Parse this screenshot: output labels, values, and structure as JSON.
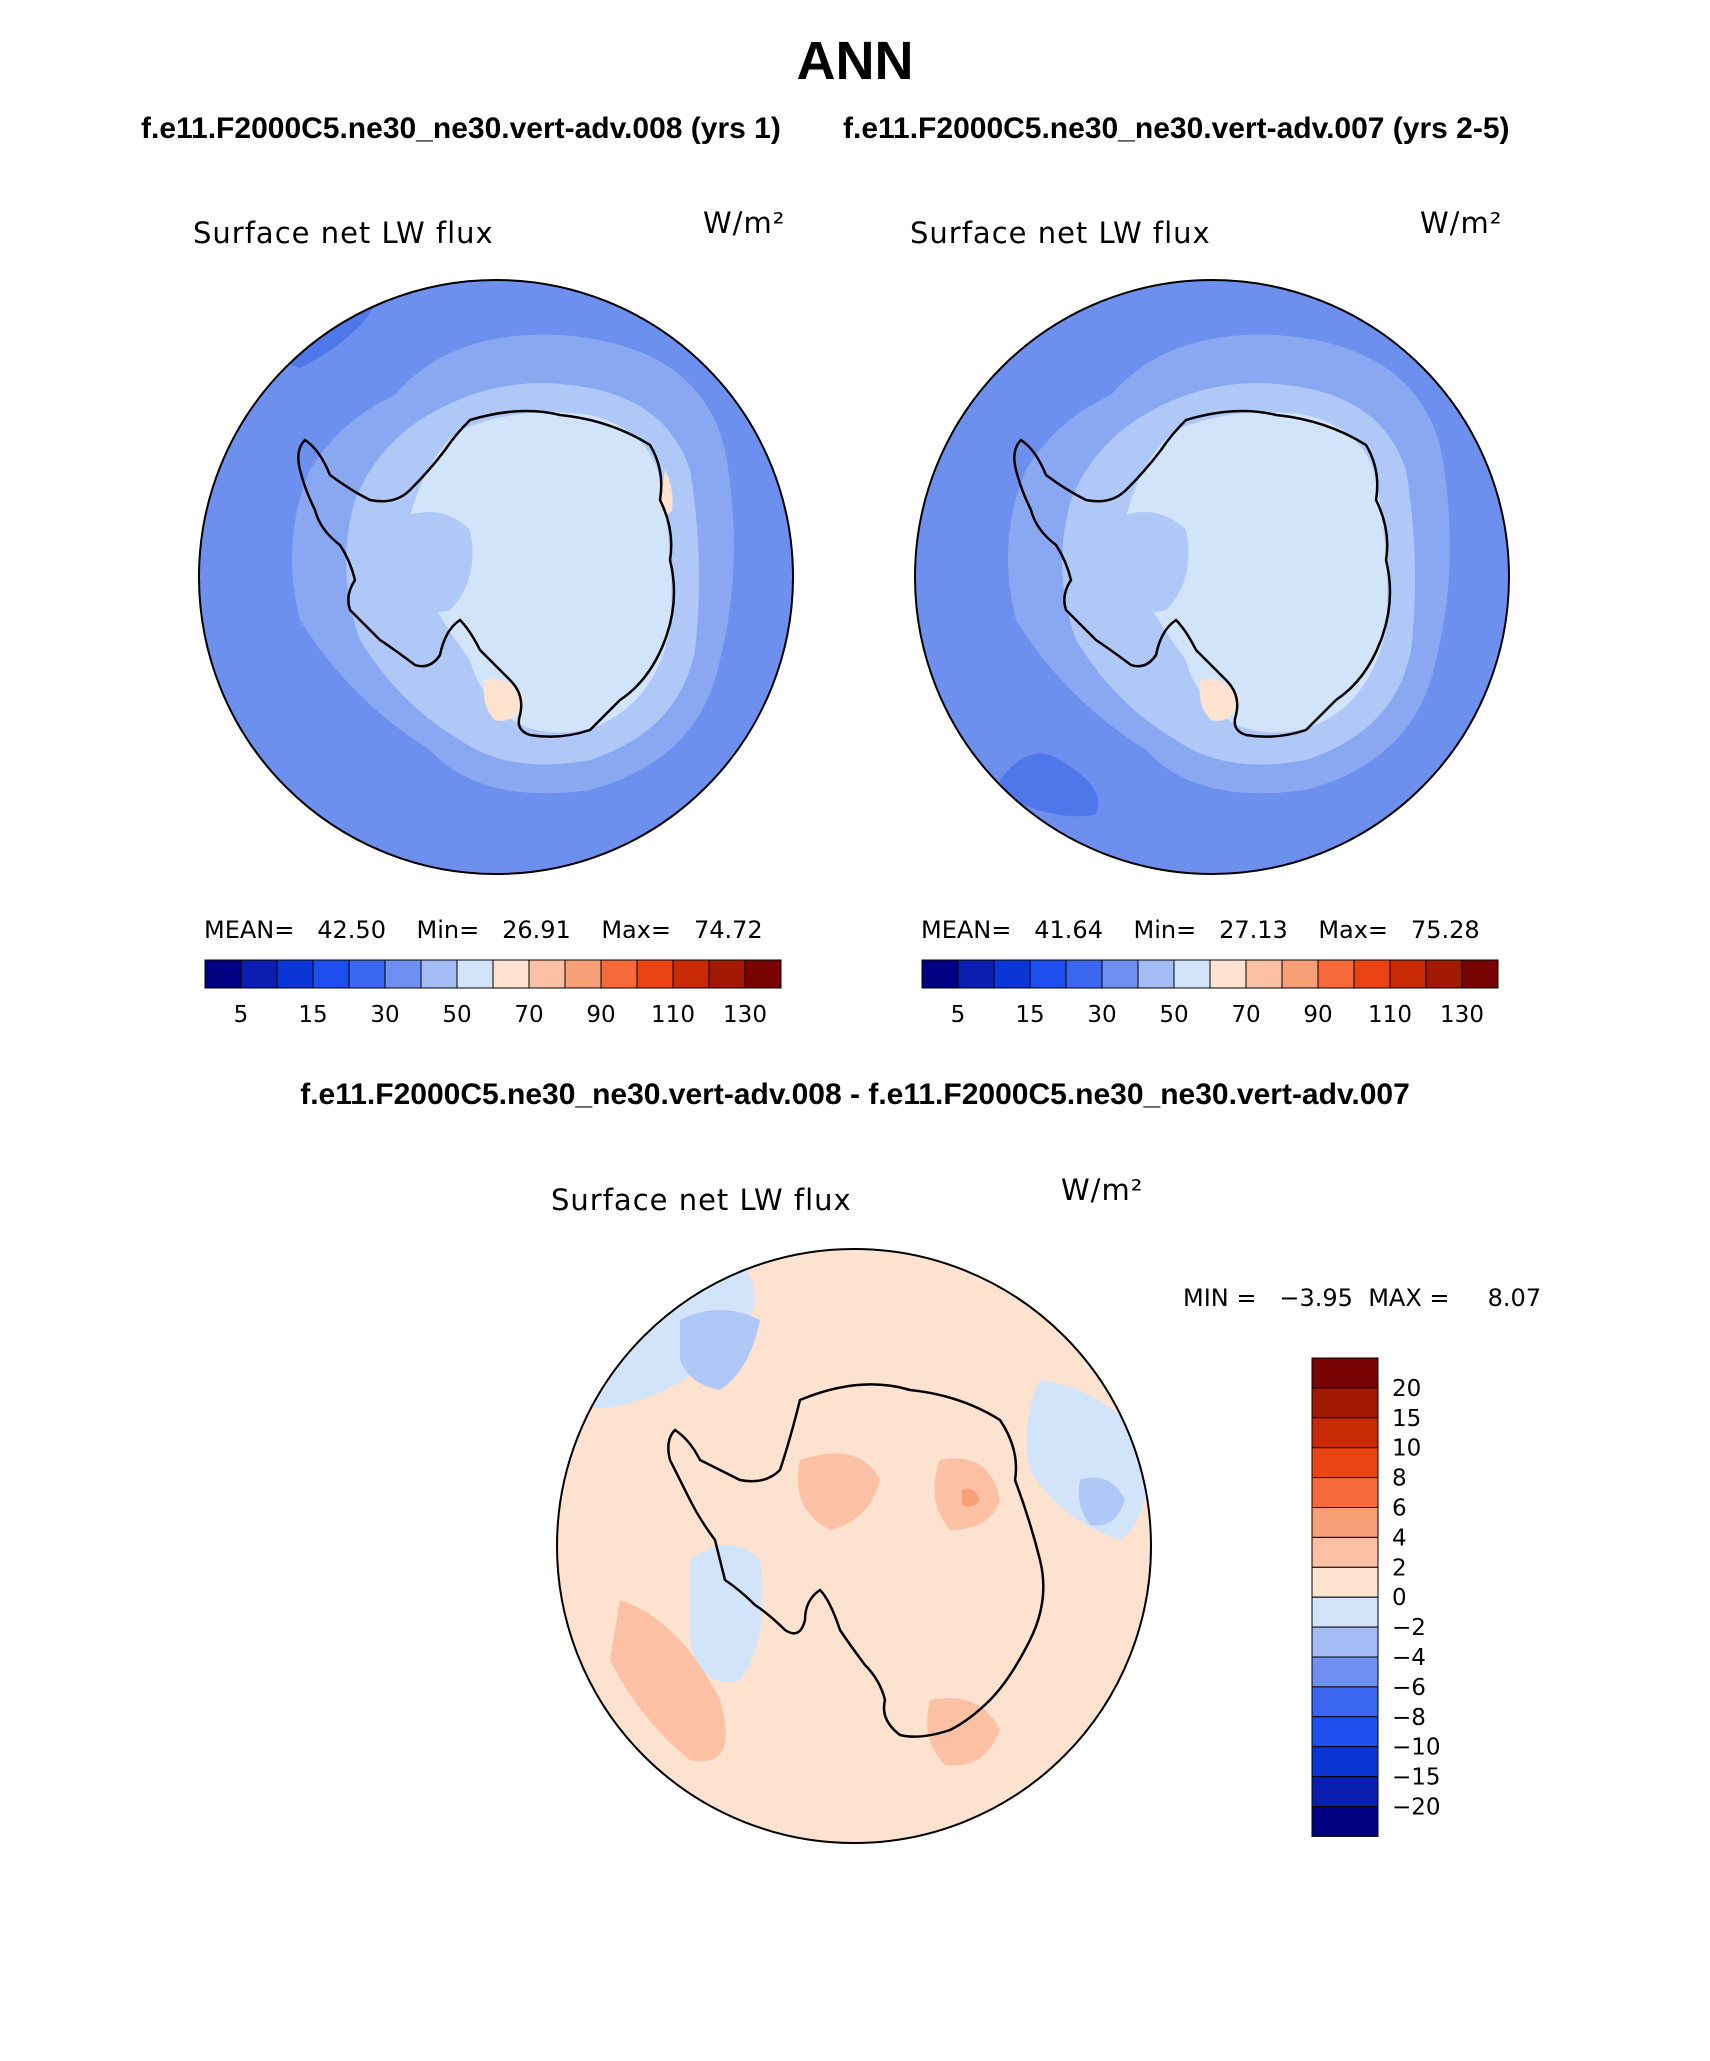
{
  "figure": {
    "title": "ANN",
    "case1_header": "f.e11.F2000C5.ne30_ne30.vert-adv.008 (yrs 1)",
    "case2_header": "f.e11.F2000C5.ne30_ne30.vert-adv.007 (yrs 2-5)",
    "diff_header": "f.e11.F2000C5.ne30_ne30.vert-adv.008 - f.e11.F2000C5.ne30_ne30.vert-adv.007"
  },
  "chart_data": [
    {
      "type": "heatmap",
      "projection": "south-polar-stereographic",
      "title": "Surface net LW flux",
      "units": "W/m²",
      "stats": {
        "mean_label": "MEAN=",
        "mean": "42.50",
        "min_label": "Min=",
        "min": "26.91",
        "max_label": "Max=",
        "max": "74.72"
      },
      "levels": [
        "5",
        "15",
        "30",
        "50",
        "70",
        "90",
        "110",
        "130"
      ],
      "colors": [
        "#000080",
        "#0a1fb0",
        "#0a36d6",
        "#1c4fee",
        "#3a66f0",
        "#6f8ff2",
        "#a4bcf6",
        "#d2e4fa",
        "#fde3cf",
        "#fcc1a4",
        "#f7a078",
        "#f66a3a",
        "#ea4413",
        "#c92b05",
        "#a31a03",
        "#7a0403"
      ],
      "field_levels": [
        "#5a80ec",
        "#6d90ef",
        "#8aa8f2",
        "#b0c8f8",
        "#d2e4fa",
        "#fde3cf"
      ]
    },
    {
      "type": "heatmap",
      "projection": "south-polar-stereographic",
      "title": "Surface net LW flux",
      "units": "W/m²",
      "stats": {
        "mean_label": "MEAN=",
        "mean": "41.64",
        "min_label": "Min=",
        "min": "27.13",
        "max_label": "Max=",
        "max": "75.28"
      },
      "levels": [
        "5",
        "15",
        "30",
        "50",
        "70",
        "90",
        "110",
        "130"
      ],
      "colors": [
        "#000080",
        "#0a1fb0",
        "#0a36d6",
        "#1c4fee",
        "#3a66f0",
        "#6f8ff2",
        "#a4bcf6",
        "#d2e4fa",
        "#fde3cf",
        "#fcc1a4",
        "#f7a078",
        "#f66a3a",
        "#ea4413",
        "#c92b05",
        "#a31a03",
        "#7a0403"
      ]
    },
    {
      "type": "heatmap",
      "projection": "south-polar-stereographic",
      "title": "Surface net LW flux",
      "units": "W/m²",
      "stats": {
        "min_label": "MIN =",
        "min": "−3.95",
        "max_label": "MAX =",
        "max": "8.07"
      },
      "levels": [
        "20",
        "15",
        "10",
        "8",
        "6",
        "4",
        "2",
        "0",
        "−2",
        "−4",
        "−6",
        "−8",
        "−10",
        "−15",
        "−20"
      ],
      "colors": [
        "#7a0403",
        "#a31a03",
        "#c92b05",
        "#ea4413",
        "#f66a3a",
        "#f7a078",
        "#fcc1a4",
        "#fde3cf",
        "#d2e4fa",
        "#a4bcf6",
        "#6f8ff2",
        "#3a66f0",
        "#1c4fee",
        "#0a36d6",
        "#0a1fb0",
        "#000080"
      ]
    }
  ]
}
